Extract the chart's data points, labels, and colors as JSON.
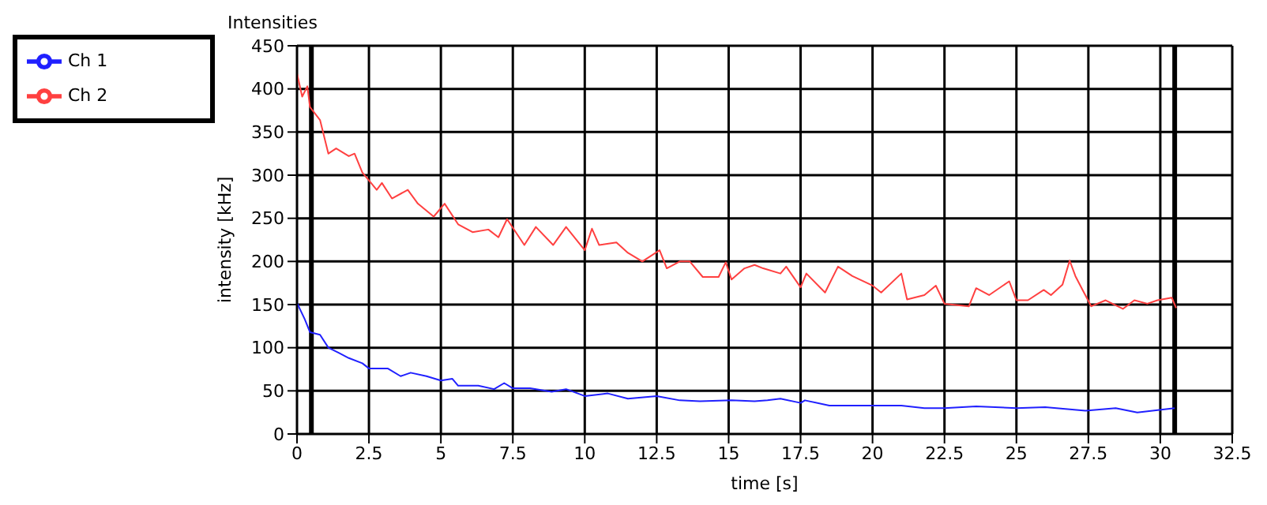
{
  "chart_data": {
    "type": "line",
    "title": "Intensities",
    "xlabel": "time [s]",
    "ylabel": "intensity [kHz]",
    "xlim": [
      0,
      32.5
    ],
    "xticks": [
      0,
      2.5,
      5,
      7.5,
      10,
      12.5,
      15,
      17.5,
      20,
      22.5,
      25,
      27.5,
      30,
      32.5
    ],
    "ylim": [
      0,
      450
    ],
    "yticks": [
      0,
      50,
      100,
      150,
      200,
      250,
      300,
      350,
      400,
      450
    ],
    "grid": true,
    "legend": "top left",
    "marker": "none",
    "line_style": "solid",
    "ref_lines": [
      {
        "axis": "x",
        "value": 0.5,
        "color": "#000000"
      },
      {
        "axis": "x",
        "value": 30.5,
        "color": "#000000"
      }
    ],
    "series": [
      {
        "name": "Ch 1",
        "color": "#2020ff",
        "x": [
          0,
          0.27,
          0.45,
          0.8,
          1.09,
          1.45,
          1.8,
          2.27,
          2.5,
          3.15,
          3.6,
          3.95,
          4.5,
          5.0,
          5.4,
          5.6,
          6.3,
          6.85,
          7.2,
          7.5,
          8.1,
          8.85,
          9.35,
          10.0,
          10.8,
          11.5,
          12.5,
          13.3,
          14.0,
          15.1,
          15.9,
          16.35,
          16.8,
          17.5,
          17.65,
          18.5,
          20.0,
          21.0,
          21.8,
          22.5,
          23.6,
          25.0,
          26.0,
          27.4,
          28.45,
          29.2,
          30.5
        ],
        "values": [
          152,
          133,
          118,
          115,
          100,
          94,
          88,
          82,
          76,
          76,
          67,
          71,
          67,
          62,
          64,
          56,
          56,
          52,
          59,
          53,
          53,
          49,
          52,
          44,
          47,
          41,
          44,
          39,
          38,
          39,
          38,
          39,
          41,
          36,
          39,
          33,
          33,
          33,
          30,
          30,
          32,
          30,
          31,
          27,
          30,
          25,
          30
        ]
      },
      {
        "name": "Ch 2",
        "color": "#ff4040",
        "x": [
          0,
          0.18,
          0.36,
          0.45,
          0.8,
          1.09,
          1.36,
          1.8,
          2.0,
          2.27,
          2.5,
          2.77,
          2.95,
          3.3,
          3.85,
          4.2,
          4.75,
          5.13,
          5.6,
          6.1,
          6.65,
          7.0,
          7.3,
          7.9,
          8.3,
          8.9,
          9.35,
          10.0,
          10.25,
          10.5,
          11.1,
          11.5,
          12.0,
          12.6,
          12.85,
          13.3,
          13.65,
          14.1,
          14.65,
          14.9,
          15.1,
          15.55,
          15.9,
          16.2,
          16.8,
          17.0,
          17.5,
          17.7,
          18.35,
          18.8,
          19.3,
          20.0,
          20.3,
          21.0,
          21.2,
          21.8,
          22.2,
          22.5,
          23.35,
          23.6,
          24.05,
          24.75,
          25.0,
          25.4,
          25.95,
          26.2,
          26.6,
          26.85,
          27.05,
          27.3,
          27.6,
          28.1,
          28.7,
          29.1,
          29.55,
          29.9,
          30.4,
          30.55
        ],
        "values": [
          418,
          391,
          403,
          379,
          364,
          325,
          331,
          322,
          325,
          303,
          294,
          283,
          291,
          273,
          283,
          267,
          252,
          267,
          243,
          234,
          237,
          228,
          249,
          219,
          240,
          219,
          240,
          213,
          238,
          219,
          222,
          210,
          200,
          213,
          192,
          200,
          200,
          182,
          182,
          199,
          179,
          192,
          196,
          192,
          186,
          194,
          170,
          186,
          164,
          194,
          183,
          172,
          164,
          186,
          156,
          161,
          172,
          151,
          148,
          169,
          161,
          177,
          155,
          155,
          167,
          161,
          173,
          201,
          183,
          167,
          148,
          155,
          145,
          155,
          151,
          155,
          158,
          146
        ]
      }
    ]
  }
}
